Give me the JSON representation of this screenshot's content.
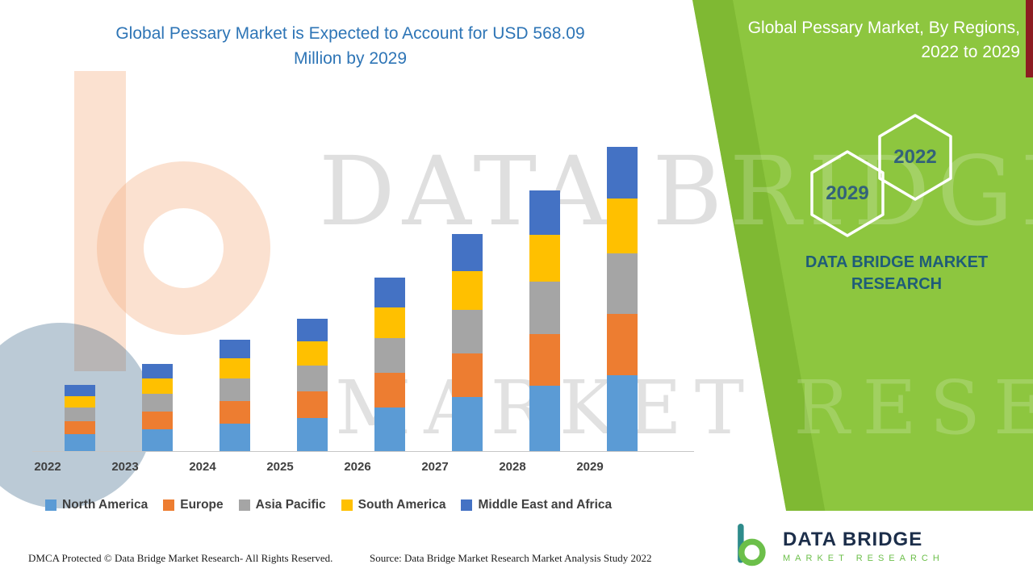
{
  "header": {
    "title_line1": "Global Pessary Market is Expected to Account for USD 568.09",
    "title_line2": "Million by 2029"
  },
  "chart_data": {
    "type": "bar",
    "stacked": true,
    "title": "Global Pessary Market is Expected to Account for USD 568.09 Million by 2029",
    "unit": "USD Million",
    "categories": [
      "2022",
      "2023",
      "2024",
      "2025",
      "2026",
      "2027",
      "2028",
      "2029"
    ],
    "series": [
      {
        "name": "North America",
        "color": "#5b9bd5",
        "values": [
          31,
          41,
          52,
          62,
          81,
          101,
          122,
          142
        ]
      },
      {
        "name": "Europe",
        "color": "#ed7d31",
        "values": [
          25,
          33,
          42,
          49,
          65,
          81,
          97,
          114
        ]
      },
      {
        "name": "Asia Pacific",
        "color": "#a5a5a5",
        "values": [
          25,
          33,
          42,
          49,
          65,
          81,
          97,
          113.09
        ]
      },
      {
        "name": "South America",
        "color": "#ffc000",
        "values": [
          22,
          29,
          37,
          45,
          58,
          73,
          88,
          102
        ]
      },
      {
        "name": "Middle East and Africa",
        "color": "#4472c4",
        "values": [
          21,
          27,
          35,
          42,
          55,
          69,
          83,
          97
        ]
      }
    ],
    "totals": [
      124,
      163,
      208,
      247,
      324,
      405,
      487,
      568.09
    ],
    "ylim": [
      0,
      568.09
    ],
    "grid": false,
    "legend_position": "bottom"
  },
  "watermark": {
    "line1": "DATA BRIDGE",
    "line2": "MARKET RESEARCH"
  },
  "side_panel": {
    "title_line1": "Global Pessary Market, By Regions,",
    "title_line2": "2022 to 2029",
    "hexagons": [
      {
        "label": "2029"
      },
      {
        "label": "2022"
      }
    ],
    "brand_line1": "DATA BRIDGE MARKET",
    "brand_line2": "RESEARCH",
    "background_color": "#8dc63f"
  },
  "logo": {
    "name": "DATA BRIDGE",
    "subtitle": "MARKET RESEARCH"
  },
  "footer": {
    "dmca": "DMCA Protected © Data Bridge Market Research- All Rights Reserved.",
    "source": "Source: Data Bridge Market Research Market Analysis Study 2022"
  }
}
